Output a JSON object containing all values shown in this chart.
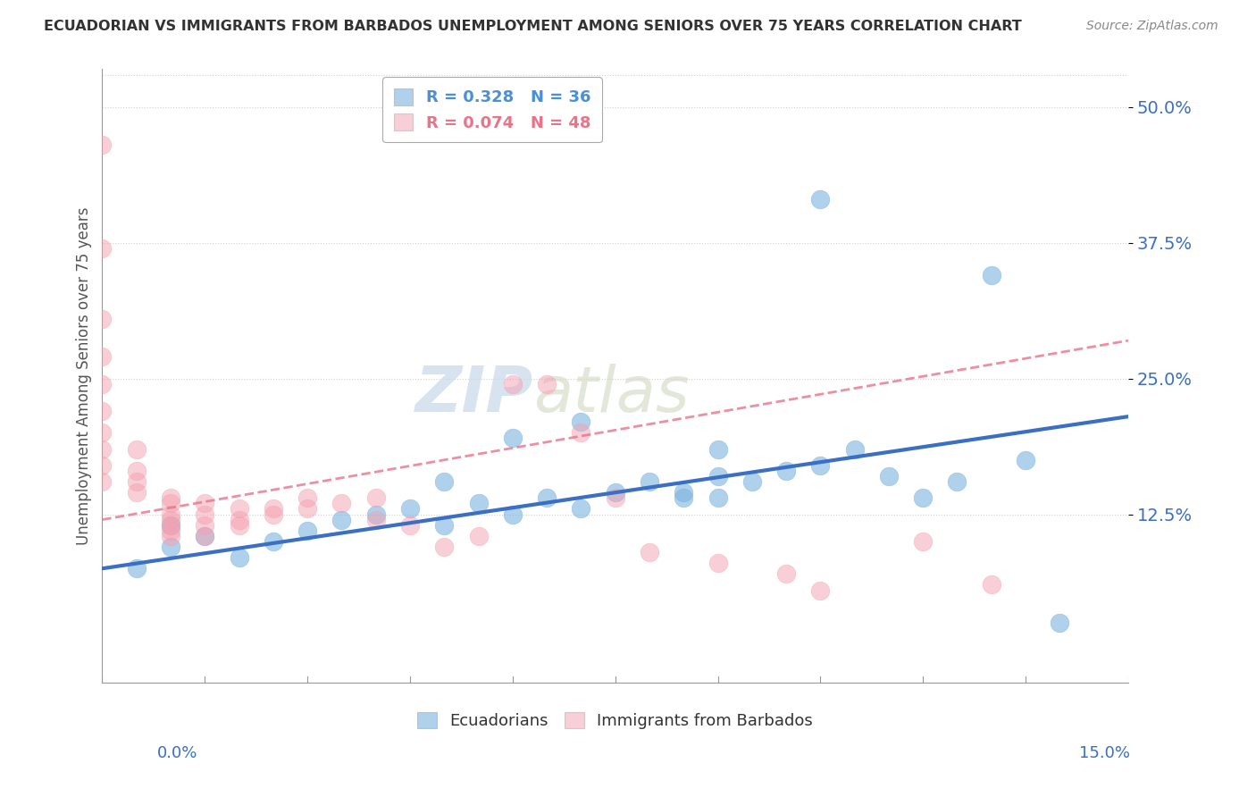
{
  "title": "ECUADORIAN VS IMMIGRANTS FROM BARBADOS UNEMPLOYMENT AMONG SENIORS OVER 75 YEARS CORRELATION CHART",
  "source": "Source: ZipAtlas.com",
  "ylabel": "Unemployment Among Seniors over 75 years",
  "ytick_labels": [
    "12.5%",
    "25.0%",
    "37.5%",
    "50.0%"
  ],
  "ytick_values": [
    0.125,
    0.25,
    0.375,
    0.5
  ],
  "xmin": 0.0,
  "xmax": 0.15,
  "ymin": -0.03,
  "ymax": 0.535,
  "legend_entries": [
    {
      "label": "R = 0.328   N = 36",
      "color": "#4a90d9"
    },
    {
      "label": "R = 0.074   N = 48",
      "color": "#e8748a"
    }
  ],
  "blue_scatter": [
    [
      0.005,
      0.075
    ],
    [
      0.01,
      0.095
    ],
    [
      0.01,
      0.115
    ],
    [
      0.015,
      0.105
    ],
    [
      0.02,
      0.085
    ],
    [
      0.025,
      0.1
    ],
    [
      0.03,
      0.11
    ],
    [
      0.035,
      0.12
    ],
    [
      0.04,
      0.125
    ],
    [
      0.045,
      0.13
    ],
    [
      0.05,
      0.115
    ],
    [
      0.055,
      0.135
    ],
    [
      0.06,
      0.125
    ],
    [
      0.065,
      0.14
    ],
    [
      0.07,
      0.13
    ],
    [
      0.075,
      0.145
    ],
    [
      0.08,
      0.155
    ],
    [
      0.085,
      0.14
    ],
    [
      0.09,
      0.16
    ],
    [
      0.09,
      0.185
    ],
    [
      0.095,
      0.155
    ],
    [
      0.1,
      0.165
    ],
    [
      0.105,
      0.17
    ],
    [
      0.11,
      0.185
    ],
    [
      0.115,
      0.16
    ],
    [
      0.07,
      0.21
    ],
    [
      0.06,
      0.195
    ],
    [
      0.12,
      0.14
    ],
    [
      0.125,
      0.155
    ],
    [
      0.09,
      0.14
    ],
    [
      0.085,
      0.145
    ],
    [
      0.05,
      0.155
    ],
    [
      0.13,
      0.345
    ],
    [
      0.105,
      0.415
    ],
    [
      0.135,
      0.175
    ],
    [
      0.14,
      0.025
    ]
  ],
  "pink_scatter": [
    [
      0.0,
      0.465
    ],
    [
      0.0,
      0.37
    ],
    [
      0.0,
      0.305
    ],
    [
      0.0,
      0.27
    ],
    [
      0.0,
      0.245
    ],
    [
      0.0,
      0.22
    ],
    [
      0.0,
      0.2
    ],
    [
      0.0,
      0.185
    ],
    [
      0.0,
      0.17
    ],
    [
      0.0,
      0.155
    ],
    [
      0.005,
      0.185
    ],
    [
      0.005,
      0.165
    ],
    [
      0.005,
      0.155
    ],
    [
      0.005,
      0.145
    ],
    [
      0.01,
      0.14
    ],
    [
      0.01,
      0.135
    ],
    [
      0.01,
      0.125
    ],
    [
      0.01,
      0.12
    ],
    [
      0.01,
      0.115
    ],
    [
      0.01,
      0.11
    ],
    [
      0.01,
      0.105
    ],
    [
      0.015,
      0.135
    ],
    [
      0.015,
      0.125
    ],
    [
      0.015,
      0.115
    ],
    [
      0.015,
      0.105
    ],
    [
      0.02,
      0.13
    ],
    [
      0.02,
      0.12
    ],
    [
      0.02,
      0.115
    ],
    [
      0.025,
      0.13
    ],
    [
      0.025,
      0.125
    ],
    [
      0.03,
      0.14
    ],
    [
      0.03,
      0.13
    ],
    [
      0.035,
      0.135
    ],
    [
      0.04,
      0.14
    ],
    [
      0.04,
      0.12
    ],
    [
      0.045,
      0.115
    ],
    [
      0.05,
      0.095
    ],
    [
      0.055,
      0.105
    ],
    [
      0.06,
      0.245
    ],
    [
      0.065,
      0.245
    ],
    [
      0.07,
      0.2
    ],
    [
      0.075,
      0.14
    ],
    [
      0.08,
      0.09
    ],
    [
      0.09,
      0.08
    ],
    [
      0.1,
      0.07
    ],
    [
      0.105,
      0.055
    ],
    [
      0.12,
      0.1
    ],
    [
      0.13,
      0.06
    ]
  ],
  "blue_line_color": "#3a6fc4",
  "blue_line_color_light": "#6baed6",
  "pink_line_color": "#e8748a",
  "pink_line_color_light": "#f4a0b0",
  "scatter_blue": "#7ab3e0",
  "scatter_pink": "#f4a0b0",
  "background_color": "#ffffff",
  "watermark_zip": "ZIP",
  "watermark_atlas": "atlas",
  "grid_color": "#d0d0d0"
}
